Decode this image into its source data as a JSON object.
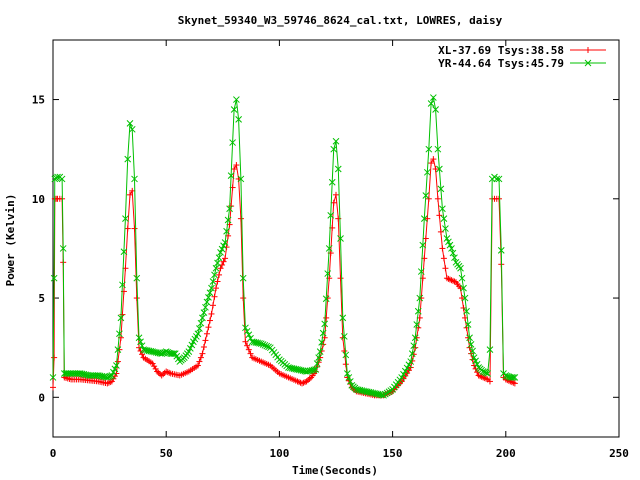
{
  "chart_data": {
    "type": "line",
    "title": "Skynet_59340_W3_59746_8624_cal.txt, LOWRES, daisy",
    "xlabel": "Time(Seconds)",
    "ylabel": "Power (Kelvin)",
    "xlim": [
      0,
      250
    ],
    "ylim": [
      -2,
      18
    ],
    "x_ticks": [
      0,
      50,
      100,
      150,
      200,
      250
    ],
    "y_ticks": [
      0,
      5,
      10,
      15
    ],
    "grid": false,
    "legend_position": "top-right",
    "series": [
      {
        "name": "XL-37.69 Tsys:38.58",
        "color": "#ff0000",
        "marker": "plus",
        "points": [
          [
            0,
            0.5
          ],
          [
            0.5,
            2
          ],
          [
            0.8,
            10
          ],
          [
            2,
            10
          ],
          [
            3,
            10
          ],
          [
            4,
            10
          ],
          [
            4.5,
            6.8
          ],
          [
            5,
            1
          ],
          [
            8,
            0.9
          ],
          [
            12,
            0.9
          ],
          [
            16,
            0.85
          ],
          [
            20,
            0.8
          ],
          [
            24,
            0.7
          ],
          [
            26,
            0.8
          ],
          [
            28,
            1.2
          ],
          [
            30,
            3
          ],
          [
            32,
            6.5
          ],
          [
            33,
            8.5
          ],
          [
            34,
            10.2
          ],
          [
            35,
            10.4
          ],
          [
            36,
            8.5
          ],
          [
            37,
            5
          ],
          [
            38,
            2.5
          ],
          [
            40,
            2
          ],
          [
            44,
            1.7
          ],
          [
            46,
            1.3
          ],
          [
            48,
            1.1
          ],
          [
            50,
            1.3
          ],
          [
            52,
            1.2
          ],
          [
            56,
            1.1
          ],
          [
            60,
            1.3
          ],
          [
            64,
            1.6
          ],
          [
            66,
            2.2
          ],
          [
            68,
            3.2
          ],
          [
            70,
            4.2
          ],
          [
            72,
            5.5
          ],
          [
            74,
            6.5
          ],
          [
            76,
            7
          ],
          [
            78,
            8.7
          ],
          [
            80,
            11.5
          ],
          [
            81,
            11.7
          ],
          [
            82,
            11
          ],
          [
            83,
            9
          ],
          [
            84,
            5
          ],
          [
            85,
            2.8
          ],
          [
            88,
            2
          ],
          [
            92,
            1.8
          ],
          [
            96,
            1.6
          ],
          [
            100,
            1.2
          ],
          [
            104,
            1
          ],
          [
            108,
            0.8
          ],
          [
            110,
            0.7
          ],
          [
            112,
            0.8
          ],
          [
            114,
            1
          ],
          [
            116,
            1.3
          ],
          [
            118,
            2
          ],
          [
            120,
            3
          ],
          [
            122,
            6
          ],
          [
            124,
            9.8
          ],
          [
            125,
            10.2
          ],
          [
            126,
            9
          ],
          [
            127,
            6
          ],
          [
            128,
            3
          ],
          [
            130,
            1
          ],
          [
            132,
            0.5
          ],
          [
            134,
            0.3
          ],
          [
            138,
            0.2
          ],
          [
            142,
            0.1
          ],
          [
            146,
            0.1
          ],
          [
            150,
            0.3
          ],
          [
            154,
            0.8
          ],
          [
            158,
            1.5
          ],
          [
            160,
            2.5
          ],
          [
            162,
            4
          ],
          [
            164,
            7
          ],
          [
            166,
            10
          ],
          [
            167,
            11.8
          ],
          [
            168,
            12
          ],
          [
            169,
            11.5
          ],
          [
            170,
            10
          ],
          [
            172,
            7.5
          ],
          [
            174,
            6
          ],
          [
            176,
            5.9
          ],
          [
            178,
            5.8
          ],
          [
            180,
            5.5
          ],
          [
            182,
            4
          ],
          [
            184,
            2.5
          ],
          [
            186,
            1.6
          ],
          [
            188,
            1.1
          ],
          [
            190,
            1
          ],
          [
            192,
            0.9
          ],
          [
            193,
            0.8
          ],
          [
            194,
            10
          ],
          [
            195,
            10
          ],
          [
            196,
            10
          ],
          [
            197,
            10
          ],
          [
            198,
            6.7
          ],
          [
            199,
            1
          ],
          [
            200,
            0.9
          ],
          [
            202,
            0.8
          ],
          [
            204,
            0.7
          ]
        ]
      },
      {
        "name": "YR-44.64 Tsys:45.79",
        "color": "#00c000",
        "marker": "cross",
        "points": [
          [
            0,
            1
          ],
          [
            0.5,
            6
          ],
          [
            0.8,
            11
          ],
          [
            2,
            11.1
          ],
          [
            3,
            11.1
          ],
          [
            4,
            11
          ],
          [
            4.5,
            7.5
          ],
          [
            5,
            1.2
          ],
          [
            8,
            1.2
          ],
          [
            12,
            1.2
          ],
          [
            16,
            1.1
          ],
          [
            20,
            1.1
          ],
          [
            24,
            1
          ],
          [
            26,
            1.1
          ],
          [
            28,
            1.6
          ],
          [
            30,
            4
          ],
          [
            32,
            9
          ],
          [
            33,
            12
          ],
          [
            34,
            13.8
          ],
          [
            35,
            13.5
          ],
          [
            36,
            11
          ],
          [
            37,
            6
          ],
          [
            38,
            3
          ],
          [
            40,
            2.4
          ],
          [
            44,
            2.3
          ],
          [
            48,
            2.2
          ],
          [
            50,
            2.3
          ],
          [
            52,
            2.2
          ],
          [
            54,
            2.2
          ],
          [
            56,
            1.8
          ],
          [
            58,
            2
          ],
          [
            60,
            2.3
          ],
          [
            62,
            2.8
          ],
          [
            64,
            3.2
          ],
          [
            66,
            4
          ],
          [
            68,
            4.8
          ],
          [
            70,
            5.5
          ],
          [
            72,
            6.5
          ],
          [
            74,
            7.3
          ],
          [
            76,
            7.8
          ],
          [
            78,
            9.5
          ],
          [
            80,
            14.5
          ],
          [
            81,
            15
          ],
          [
            82,
            14
          ],
          [
            83,
            11
          ],
          [
            84,
            6
          ],
          [
            85,
            3.5
          ],
          [
            88,
            2.8
          ],
          [
            92,
            2.7
          ],
          [
            96,
            2.5
          ],
          [
            100,
            1.9
          ],
          [
            104,
            1.5
          ],
          [
            108,
            1.4
          ],
          [
            112,
            1.3
          ],
          [
            116,
            1.4
          ],
          [
            118,
            2.3
          ],
          [
            120,
            3.7
          ],
          [
            122,
            7.5
          ],
          [
            124,
            12.5
          ],
          [
            125,
            12.9
          ],
          [
            126,
            11.5
          ],
          [
            127,
            8
          ],
          [
            128,
            4
          ],
          [
            130,
            1.2
          ],
          [
            132,
            0.6
          ],
          [
            134,
            0.4
          ],
          [
            138,
            0.3
          ],
          [
            142,
            0.2
          ],
          [
            146,
            0.1
          ],
          [
            150,
            0.4
          ],
          [
            154,
            1
          ],
          [
            158,
            1.8
          ],
          [
            160,
            3
          ],
          [
            162,
            5
          ],
          [
            164,
            9
          ],
          [
            166,
            12.5
          ],
          [
            167,
            14.8
          ],
          [
            168,
            15.1
          ],
          [
            169,
            14.5
          ],
          [
            170,
            12.5
          ],
          [
            172,
            9.5
          ],
          [
            174,
            8
          ],
          [
            176,
            7.5
          ],
          [
            178,
            6.8
          ],
          [
            180,
            6.5
          ],
          [
            182,
            5
          ],
          [
            184,
            3
          ],
          [
            186,
            2
          ],
          [
            188,
            1.5
          ],
          [
            190,
            1.3
          ],
          [
            192,
            1.2
          ],
          [
            193,
            2.4
          ],
          [
            194,
            11
          ],
          [
            195,
            11.1
          ],
          [
            196,
            11
          ],
          [
            197,
            11
          ],
          [
            198,
            7.4
          ],
          [
            199,
            1.2
          ],
          [
            200,
            1.1
          ],
          [
            202,
            1
          ],
          [
            204,
            1
          ]
        ]
      }
    ]
  }
}
